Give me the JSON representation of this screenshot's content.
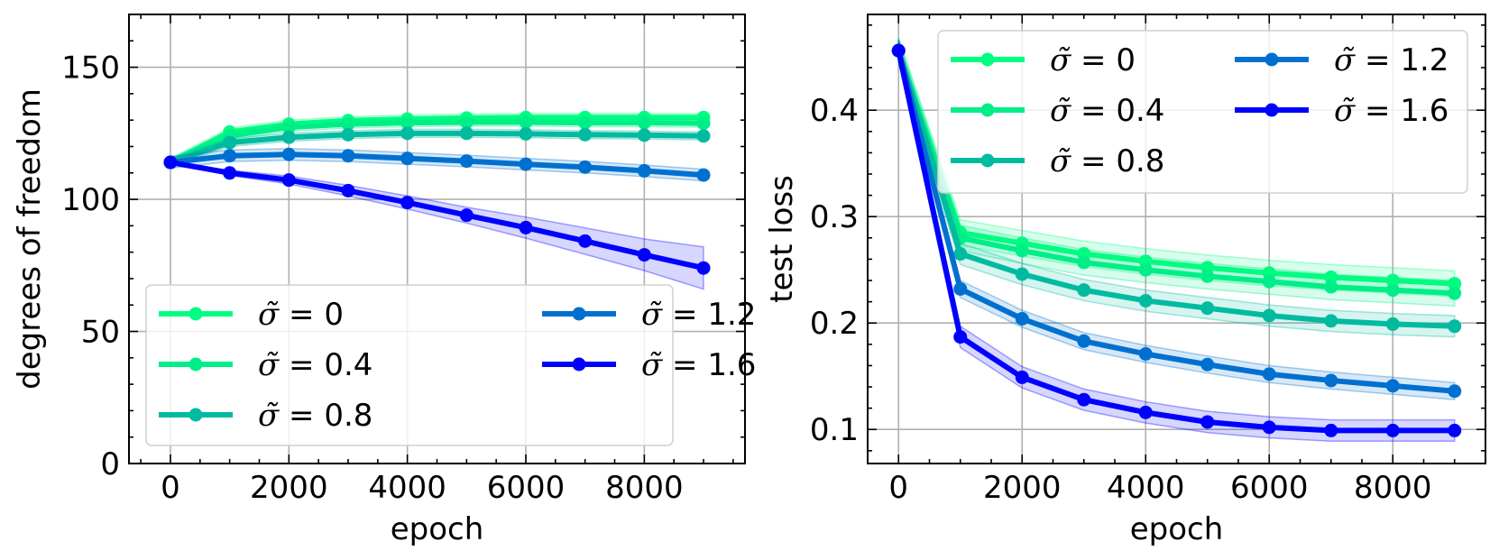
{
  "colors": {
    "s0": "#00ff80",
    "s04": "#00ee88",
    "s08": "#00bba0",
    "s12": "#0070d0",
    "s16": "#0000ff"
  },
  "chart_data": [
    {
      "type": "line",
      "title": "",
      "xlabel": "epoch",
      "ylabel": "degrees of freedom",
      "xlim": [
        -700,
        9700
      ],
      "ylim": [
        0,
        170
      ],
      "xticks": [
        0,
        2000,
        4000,
        6000,
        8000
      ],
      "xtick_labels": [
        "0",
        "2000",
        "4000",
        "6000",
        "8000"
      ],
      "yticks": [
        0,
        50,
        100,
        150
      ],
      "ytick_labels": [
        "0",
        "50",
        "100",
        "150"
      ],
      "grid": true,
      "legend": {
        "position": "lower-left",
        "columns": 2
      },
      "x": [
        0,
        1000,
        2000,
        3000,
        4000,
        5000,
        6000,
        7000,
        8000,
        9000
      ],
      "series": [
        {
          "name": "σ̃ = 0",
          "symbol": "σ̃",
          "value_label": "0",
          "color_key": "s0",
          "values": [
            114,
            125.5,
            128.5,
            129.8,
            130.4,
            130.8,
            131,
            131,
            131,
            131
          ],
          "band": 1.5
        },
        {
          "name": "σ̃ = 0.4",
          "symbol": "σ̃",
          "value_label": "0.4",
          "color_key": "s04",
          "values": [
            114,
            124,
            127.3,
            128.5,
            129,
            129.2,
            129.2,
            129,
            129,
            128.8
          ],
          "band": 1.5
        },
        {
          "name": "σ̃ = 0.8",
          "symbol": "σ̃",
          "value_label": "0.8",
          "color_key": "s08",
          "values": [
            114,
            121.5,
            123.5,
            124.5,
            125,
            125,
            124.8,
            124.5,
            124.3,
            124
          ],
          "band": 1.5
        },
        {
          "name": "σ̃ = 1.2",
          "symbol": "σ̃",
          "value_label": "1.2",
          "color_key": "s12",
          "values": [
            114,
            116.5,
            117,
            116.5,
            115.5,
            114.5,
            113.3,
            112.2,
            110.8,
            109.2
          ],
          "band": 2.2
        },
        {
          "name": "σ̃ = 1.6",
          "symbol": "σ̃",
          "value_label": "1.6",
          "color_key": "s16",
          "values": [
            114,
            110,
            107.3,
            103.3,
            98.8,
            94,
            89.3,
            84.2,
            79,
            74
          ],
          "band": [
            0,
            1,
            1.5,
            2,
            2.5,
            3,
            4,
            5,
            6,
            8
          ]
        }
      ]
    },
    {
      "type": "line",
      "title": "",
      "xlabel": "epoch",
      "ylabel": "test loss",
      "xlim": [
        -500,
        9500
      ],
      "ylim": [
        0.068,
        0.49
      ],
      "xticks": [
        0,
        2000,
        4000,
        6000,
        8000
      ],
      "xtick_labels": [
        "0",
        "2000",
        "4000",
        "6000",
        "8000"
      ],
      "yticks": [
        0.1,
        0.2,
        0.3,
        0.4
      ],
      "ytick_labels": [
        "0.1",
        "0.2",
        "0.3",
        "0.4"
      ],
      "grid": true,
      "legend": {
        "position": "upper-right",
        "columns": 2
      },
      "x": [
        0,
        1000,
        2000,
        3000,
        4000,
        5000,
        6000,
        7000,
        8000,
        9000
      ],
      "series": [
        {
          "name": "σ̃ = 0",
          "symbol": "σ̃",
          "value_label": "0",
          "color_key": "s0",
          "values": [
            0.456,
            0.285,
            0.275,
            0.265,
            0.258,
            0.252,
            0.247,
            0.243,
            0.24,
            0.237
          ],
          "band": 0.012
        },
        {
          "name": "σ̃ = 0.4",
          "symbol": "σ̃",
          "value_label": "0.4",
          "color_key": "s04",
          "values": [
            0.456,
            0.28,
            0.268,
            0.257,
            0.25,
            0.244,
            0.239,
            0.234,
            0.231,
            0.228
          ],
          "band": 0.012
        },
        {
          "name": "σ̃ = 0.8",
          "symbol": "σ̃",
          "value_label": "0.8",
          "color_key": "s08",
          "values": [
            0.456,
            0.265,
            0.246,
            0.231,
            0.221,
            0.214,
            0.207,
            0.202,
            0.199,
            0.197
          ],
          "band": 0.01
        },
        {
          "name": "σ̃ = 1.2",
          "symbol": "σ̃",
          "value_label": "1.2",
          "color_key": "s12",
          "values": [
            0.456,
            0.232,
            0.204,
            0.183,
            0.171,
            0.161,
            0.152,
            0.146,
            0.141,
            0.136
          ],
          "band": 0.008
        },
        {
          "name": "σ̃ = 1.6",
          "symbol": "σ̃",
          "value_label": "1.6",
          "color_key": "s16",
          "values": [
            0.456,
            0.187,
            0.149,
            0.128,
            0.116,
            0.107,
            0.102,
            0.099,
            0.099,
            0.099
          ],
          "band": 0.01
        }
      ]
    }
  ]
}
